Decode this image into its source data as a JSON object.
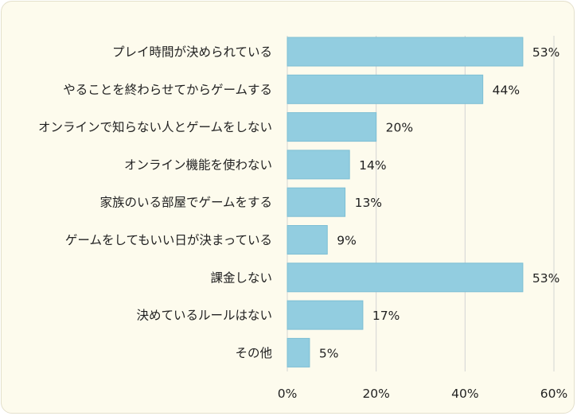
{
  "chart_data": {
    "type": "bar",
    "orientation": "horizontal",
    "categories": [
      "プレイ時間が決められている",
      "やることを終わらせてからゲームする",
      "オンラインで知らない人とゲームをしない",
      "オンライン機能を使わない",
      "家族のいる部屋でゲームをする",
      "ゲームをしてもいい日が決まっている",
      "課金しない",
      "決めているルールはない",
      "その他"
    ],
    "values": [
      53,
      44,
      20,
      14,
      13,
      9,
      53,
      17,
      5
    ],
    "value_labels": [
      "53%",
      "44%",
      "20%",
      "14%",
      "13%",
      "9%",
      "53%",
      "17%",
      "5%"
    ],
    "xlim": [
      0,
      60
    ],
    "xticks": [
      0,
      20,
      40,
      60
    ],
    "xtick_labels": [
      "0%",
      "20%",
      "40%",
      "60%"
    ],
    "grid": true,
    "colors": {
      "bar": "#92cde0",
      "bar_edge": "#7dbfd4",
      "grid": "#d4d4d4",
      "background": "#fdfbed"
    }
  }
}
